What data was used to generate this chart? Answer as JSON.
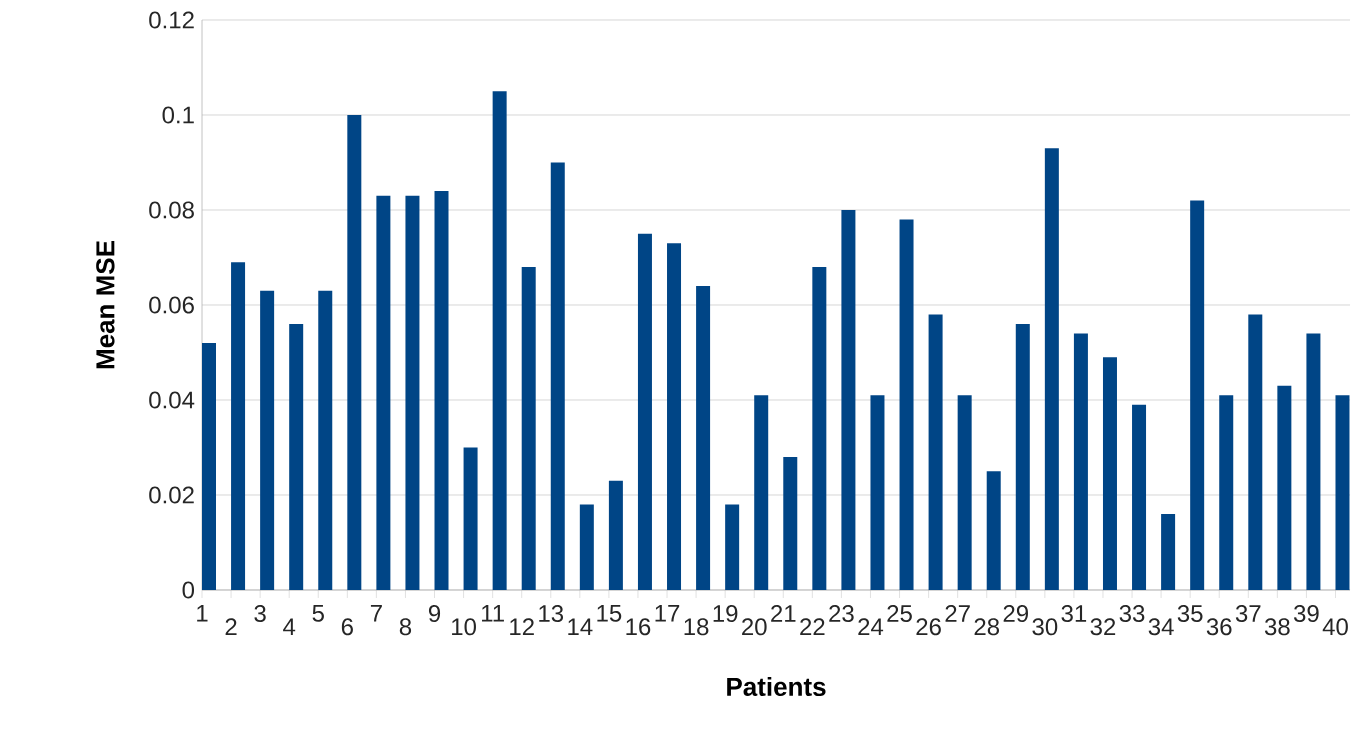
{
  "chart_data": {
    "type": "bar",
    "xlabel": "Patients",
    "ylabel": "Mean MSE",
    "categories": [
      "1",
      "2",
      "3",
      "4",
      "5",
      "6",
      "7",
      "8",
      "9",
      "10",
      "11",
      "12",
      "13",
      "14",
      "15",
      "16",
      "17",
      "18",
      "19",
      "20",
      "21",
      "22",
      "23",
      "24",
      "25",
      "26",
      "27",
      "28",
      "29",
      "30",
      "31",
      "32",
      "33",
      "34",
      "35",
      "36",
      "37",
      "38",
      "39",
      "40"
    ],
    "values": [
      0.052,
      0.069,
      0.063,
      0.056,
      0.063,
      0.1,
      0.083,
      0.083,
      0.084,
      0.03,
      0.105,
      0.068,
      0.09,
      0.018,
      0.023,
      0.075,
      0.073,
      0.064,
      0.018,
      0.041,
      0.028,
      0.068,
      0.08,
      0.041,
      0.078,
      0.058,
      0.041,
      0.025,
      0.056,
      0.093,
      0.054,
      0.049,
      0.039,
      0.016,
      0.082,
      0.041,
      0.058,
      0.043,
      0.054,
      0.041
    ],
    "color": "#004586",
    "ylim": [
      0,
      0.12
    ],
    "yticks": [
      0,
      0.02,
      0.04,
      0.06,
      0.08,
      0.1,
      0.12
    ],
    "grid": "y"
  }
}
